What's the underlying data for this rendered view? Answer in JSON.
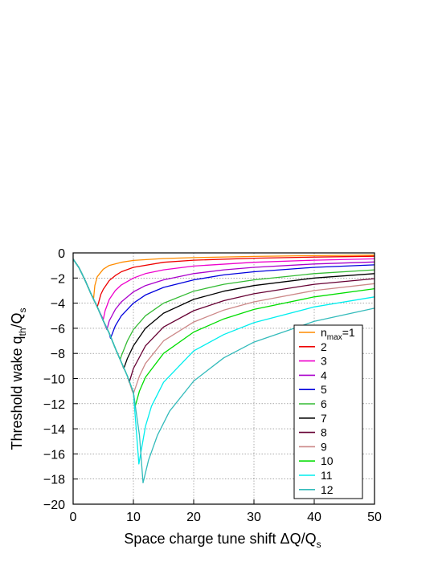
{
  "chart_data": {
    "type": "line",
    "xlabel": "Space charge tune shift  ΔQ/Q",
    "xlabel_sub": "s",
    "ylabel": "Threshold wake  q",
    "ylabel_sub": "th",
    "ylabel_tail": "/Q",
    "ylabel_tail_sub": "s",
    "xlim": [
      0,
      50
    ],
    "ylim": [
      -20,
      0
    ],
    "xticks": [
      "0",
      "10",
      "20",
      "30",
      "40",
      "50"
    ],
    "yticks": [
      "0",
      "−2",
      "−4",
      "−6",
      "−8",
      "−10",
      "−12",
      "−14",
      "−16",
      "−18",
      "−20"
    ],
    "grid": true,
    "legend_position": "bottom-right",
    "legend_first_prefix": "n",
    "legend_first_sub": "max",
    "legend_first_suffix": "=1",
    "series": [
      {
        "name": "1",
        "color": "#ff8c00",
        "x": [
          0,
          1,
          2,
          3,
          3.4,
          3.6,
          4,
          5,
          6,
          8,
          10,
          15,
          20,
          30,
          40,
          50
        ],
        "y": [
          -0.5,
          -1.2,
          -2.2,
          -3.3,
          -3.6,
          -2.6,
          -1.9,
          -1.3,
          -1.0,
          -0.75,
          -0.6,
          -0.45,
          -0.38,
          -0.28,
          -0.22,
          -0.18
        ]
      },
      {
        "name": "2",
        "color": "#ee0000",
        "x": [
          0,
          1,
          2,
          3,
          4,
          4.2,
          4.6,
          5,
          6,
          7,
          8,
          10,
          15,
          20,
          30,
          40,
          50
        ],
        "y": [
          -0.5,
          -1.2,
          -2.2,
          -3.3,
          -4.3,
          -4.0,
          -3.3,
          -2.9,
          -2.2,
          -1.8,
          -1.5,
          -1.15,
          -0.75,
          -0.58,
          -0.42,
          -0.33,
          -0.27
        ]
      },
      {
        "name": "3",
        "color": "#ee00cc",
        "x": [
          0,
          1,
          2,
          3,
          4,
          5,
          5.3,
          6,
          7,
          8,
          10,
          12,
          15,
          20,
          30,
          40,
          50
        ],
        "y": [
          -0.5,
          -1.2,
          -2.2,
          -3.3,
          -4.3,
          -5.3,
          -4.6,
          -3.7,
          -3.0,
          -2.55,
          -2.0,
          -1.65,
          -1.35,
          -1.05,
          -0.75,
          -0.58,
          -0.47
        ]
      },
      {
        "name": "4",
        "color": "#aa00cc",
        "x": [
          0,
          1,
          2,
          3,
          4,
          5,
          5.6,
          6,
          7,
          8,
          10,
          12,
          15,
          20,
          25,
          30,
          40,
          50
        ],
        "y": [
          -0.5,
          -1.2,
          -2.2,
          -3.3,
          -4.3,
          -5.4,
          -6.1,
          -5.4,
          -4.5,
          -3.9,
          -3.1,
          -2.6,
          -2.15,
          -1.65,
          -1.35,
          -1.15,
          -0.88,
          -0.72
        ]
      },
      {
        "name": "5",
        "color": "#0000dd",
        "x": [
          0,
          1,
          2,
          3,
          4,
          5,
          6,
          6.2,
          7,
          8,
          10,
          12,
          15,
          20,
          25,
          30,
          40,
          50
        ],
        "y": [
          -0.5,
          -1.2,
          -2.2,
          -3.3,
          -4.3,
          -5.4,
          -6.4,
          -6.8,
          -5.8,
          -5.0,
          -4.0,
          -3.35,
          -2.75,
          -2.15,
          -1.75,
          -1.5,
          -1.15,
          -0.95
        ]
      },
      {
        "name": "6",
        "color": "#33bb33",
        "x": [
          0,
          1,
          2,
          3,
          4,
          5,
          6,
          7,
          7.8,
          8,
          9,
          10,
          12,
          15,
          20,
          25,
          30,
          40,
          50
        ],
        "y": [
          -0.5,
          -1.2,
          -2.2,
          -3.3,
          -4.3,
          -5.4,
          -6.4,
          -7.6,
          -8.5,
          -8.2,
          -7.0,
          -6.1,
          -5.0,
          -4.0,
          -3.05,
          -2.5,
          -2.15,
          -1.65,
          -1.35
        ]
      },
      {
        "name": "7",
        "color": "#000000",
        "x": [
          0,
          1,
          2,
          3,
          4,
          5,
          6,
          7,
          8,
          8.4,
          9,
          10,
          12,
          15,
          20,
          25,
          30,
          40,
          50
        ],
        "y": [
          -0.5,
          -1.2,
          -2.2,
          -3.3,
          -4.3,
          -5.4,
          -6.4,
          -7.6,
          -8.7,
          -9.2,
          -8.4,
          -7.4,
          -6.0,
          -4.8,
          -3.7,
          -3.05,
          -2.6,
          -2.0,
          -1.65
        ]
      },
      {
        "name": "8",
        "color": "#660033",
        "x": [
          0,
          1,
          2,
          3,
          4,
          5,
          6,
          7,
          8,
          9,
          9.3,
          10,
          12,
          15,
          20,
          25,
          30,
          40,
          50
        ],
        "y": [
          -0.5,
          -1.2,
          -2.2,
          -3.3,
          -4.3,
          -5.4,
          -6.4,
          -7.6,
          -8.7,
          -9.8,
          -10.3,
          -9.2,
          -7.4,
          -5.9,
          -4.6,
          -3.8,
          -3.25,
          -2.5,
          -2.05
        ]
      },
      {
        "name": "9",
        "color": "#cc8888",
        "x": [
          0,
          1,
          2,
          3,
          4,
          5,
          6,
          7,
          8,
          9,
          9.8,
          10,
          11,
          12,
          15,
          20,
          25,
          30,
          40,
          50
        ],
        "y": [
          -0.5,
          -1.2,
          -2.2,
          -3.3,
          -4.3,
          -5.4,
          -6.4,
          -7.6,
          -8.7,
          -9.8,
          -11.0,
          -11.2,
          -9.8,
          -8.8,
          -7.0,
          -5.5,
          -4.55,
          -3.9,
          -3.0,
          -2.45
        ]
      },
      {
        "name": "10",
        "color": "#00dd00",
        "x": [
          0,
          1,
          2,
          3,
          4,
          5,
          6,
          7,
          8,
          9,
          10,
          10.3,
          11,
          12,
          15,
          20,
          25,
          30,
          40,
          50
        ],
        "y": [
          -0.5,
          -1.2,
          -2.2,
          -3.3,
          -4.3,
          -5.4,
          -6.4,
          -7.6,
          -8.7,
          -9.8,
          -11.1,
          -12.2,
          -11.0,
          -9.9,
          -8.0,
          -6.3,
          -5.25,
          -4.5,
          -3.5,
          -2.85
        ]
      },
      {
        "name": "11",
        "color": "#00eeee",
        "x": [
          0,
          1,
          2,
          3,
          4,
          5,
          6,
          7,
          8,
          9,
          10,
          10.9,
          12,
          13,
          15,
          20,
          25,
          30,
          40,
          50
        ],
        "y": [
          -0.5,
          -1.2,
          -2.2,
          -3.3,
          -4.3,
          -5.4,
          -6.4,
          -7.6,
          -8.7,
          -9.8,
          -11.1,
          -16.8,
          -13.8,
          -12.2,
          -10.3,
          -7.8,
          -6.5,
          -5.55,
          -4.3,
          -3.5
        ]
      },
      {
        "name": "12",
        "color": "#33bbbb",
        "x": [
          0,
          1,
          2,
          3,
          4,
          5,
          6,
          7,
          8,
          9,
          10,
          11,
          11.6,
          12.5,
          14,
          16,
          20,
          25,
          30,
          40,
          50
        ],
        "y": [
          -0.5,
          -1.2,
          -2.2,
          -3.3,
          -4.3,
          -5.4,
          -6.4,
          -7.6,
          -8.7,
          -9.8,
          -11.1,
          -14.5,
          -18.3,
          -16.5,
          -14.5,
          -12.6,
          -10.2,
          -8.35,
          -7.1,
          -5.45,
          -4.4
        ]
      }
    ]
  }
}
